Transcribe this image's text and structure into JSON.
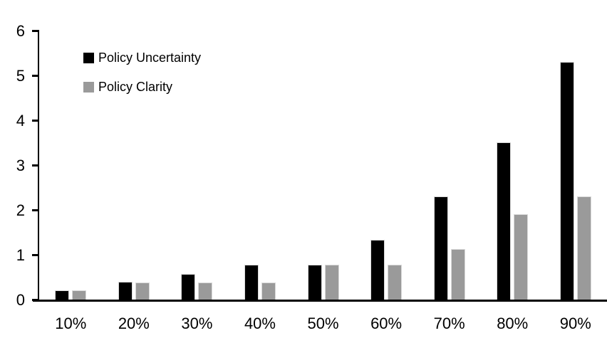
{
  "chart_data": {
    "type": "bar",
    "title": "",
    "xlabel": "",
    "ylabel": "",
    "categories": [
      "10%",
      "20%",
      "30%",
      "40%",
      "50%",
      "60%",
      "70%",
      "80%",
      "90%"
    ],
    "series": [
      {
        "name": "Policy Uncertainty",
        "color": "#000000",
        "values": [
          0.2,
          0.4,
          0.57,
          0.77,
          0.78,
          1.33,
          2.3,
          3.5,
          5.3
        ]
      },
      {
        "name": "Policy Clarity",
        "color": "#9a9a9a",
        "values": [
          0.2,
          0.38,
          0.38,
          0.38,
          0.77,
          0.77,
          1.13,
          1.9,
          2.3
        ]
      }
    ],
    "ylim": [
      0,
      6
    ],
    "yticks": [
      0,
      1,
      2,
      3,
      4,
      5,
      6
    ],
    "grid": false,
    "legend_position": "top-left-inside",
    "background_color": "#ffffff",
    "axis_color": "#000000"
  }
}
